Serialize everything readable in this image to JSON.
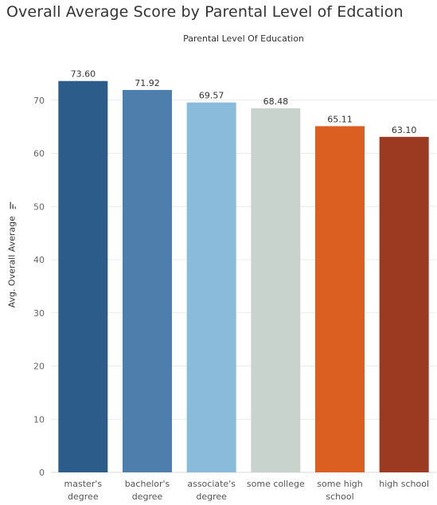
{
  "title": "Overall Average Score by Parental Level of Edcation",
  "chart_data": {
    "type": "bar",
    "title": "Overall Average Score by Parental Level of Edcation",
    "header": "Parental Level Of Education",
    "xlabel": "",
    "ylabel": "Avg. Overall Average",
    "ylim": [
      0,
      80
    ],
    "yticks": [
      0,
      10,
      20,
      30,
      40,
      50,
      60,
      70
    ],
    "grid": true,
    "categories": [
      [
        "master's",
        "degree"
      ],
      [
        "bachelor's",
        "degree"
      ],
      [
        "associate's",
        "degree"
      ],
      [
        "some college"
      ],
      [
        "some high",
        "school"
      ],
      [
        "high school"
      ]
    ],
    "values": [
      73.6,
      71.92,
      69.57,
      68.48,
      65.11,
      63.1
    ],
    "value_labels": [
      "73.60",
      "71.92",
      "69.57",
      "68.48",
      "65.11",
      "63.10"
    ],
    "colors": [
      "#2c5d8a",
      "#4e7fac",
      "#8bbbdb",
      "#c9d3ce",
      "#dc5f22",
      "#9b3a20"
    ]
  }
}
